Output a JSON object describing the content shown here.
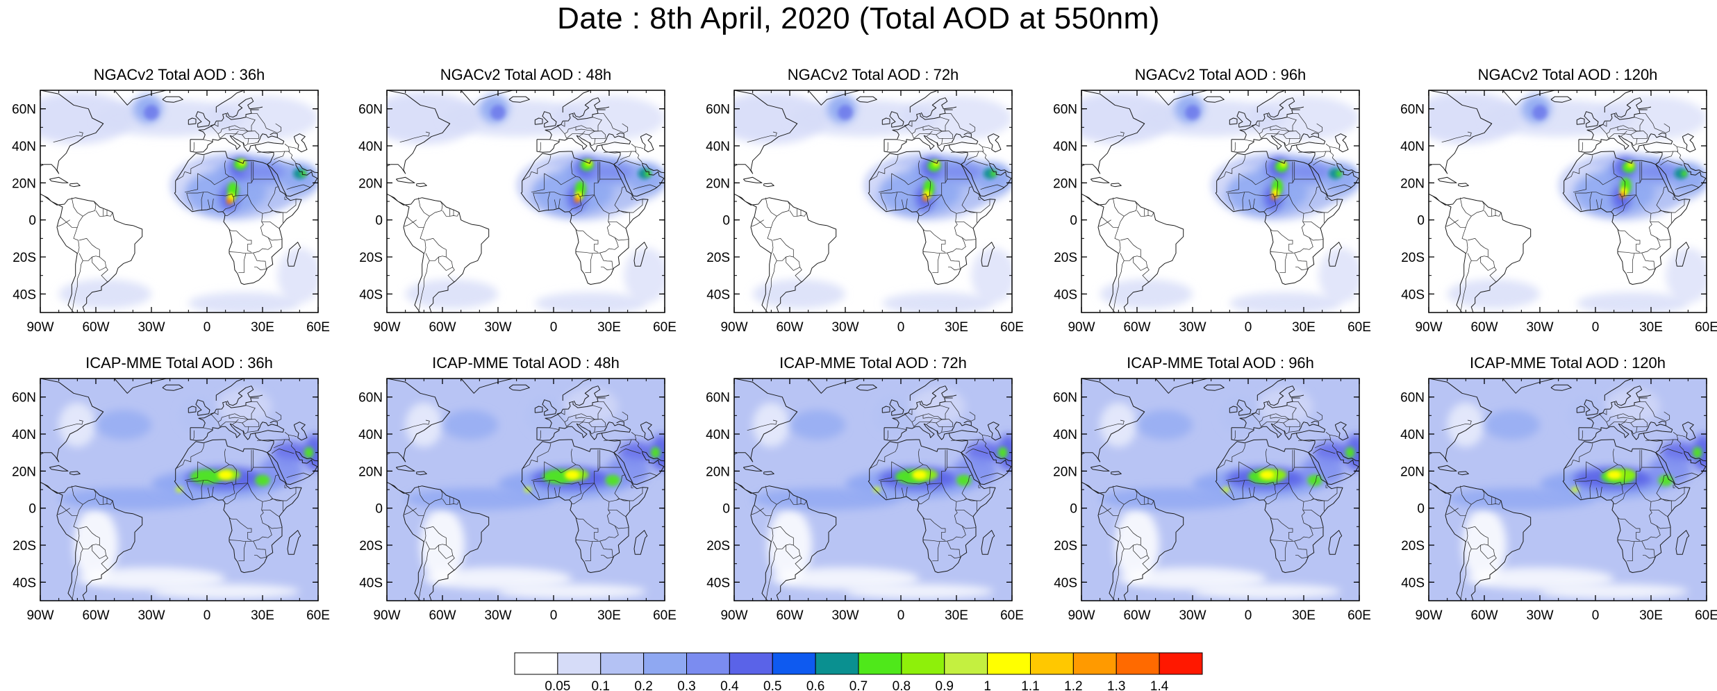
{
  "title": "Date : 8th April, 2020 (Total AOD at 550nm)",
  "panels": [
    {
      "row": "ngac",
      "lead": "36h",
      "title": "NGACv2 Total AOD : 36h"
    },
    {
      "row": "ngac",
      "lead": "48h",
      "title": "NGACv2 Total AOD : 48h"
    },
    {
      "row": "ngac",
      "lead": "72h",
      "title": "NGACv2 Total AOD : 72h"
    },
    {
      "row": "ngac",
      "lead": "96h",
      "title": "NGACv2 Total AOD : 96h"
    },
    {
      "row": "ngac",
      "lead": "120h",
      "title": "NGACv2 Total AOD : 120h"
    },
    {
      "row": "icap",
      "lead": "36h",
      "title": "ICAP-MME Total AOD : 36h"
    },
    {
      "row": "icap",
      "lead": "48h",
      "title": "ICAP-MME Total AOD : 48h"
    },
    {
      "row": "icap",
      "lead": "72h",
      "title": "ICAP-MME Total AOD : 72h"
    },
    {
      "row": "icap",
      "lead": "96h",
      "title": "ICAP-MME Total AOD : 96h"
    },
    {
      "row": "icap",
      "lead": "120h",
      "title": "ICAP-MME Total AOD : 120h"
    }
  ],
  "axes": {
    "x_ticks": [
      {
        "lon": -90,
        "label": "90W"
      },
      {
        "lon": -60,
        "label": "60W"
      },
      {
        "lon": -30,
        "label": "30W"
      },
      {
        "lon": 0,
        "label": "0"
      },
      {
        "lon": 30,
        "label": "30E"
      },
      {
        "lon": 60,
        "label": "60E"
      }
    ],
    "y_ticks": [
      {
        "lat": 60,
        "label": "60N"
      },
      {
        "lat": 40,
        "label": "40N"
      },
      {
        "lat": 20,
        "label": "20N"
      },
      {
        "lat": 0,
        "label": "0"
      },
      {
        "lat": -20,
        "label": "20S"
      },
      {
        "lat": -40,
        "label": "40S"
      }
    ],
    "lon_range": [
      -90,
      60
    ],
    "lat_range": [
      -50,
      70
    ]
  },
  "colorbar": {
    "colors": [
      "#ffffff",
      "#d6dcf8",
      "#b4c2f4",
      "#8fa8f2",
      "#7b8cf0",
      "#5a63e8",
      "#0e5af0",
      "#0a9090",
      "#4fe81a",
      "#8ef00a",
      "#c4f040",
      "#ffff00",
      "#ffc800",
      "#ff9a00",
      "#ff6a00",
      "#ff1800"
    ],
    "labels": [
      "0.05",
      "0.1",
      "0.2",
      "0.3",
      "0.4",
      "0.5",
      "0.6",
      "0.7",
      "0.8",
      "0.9",
      "1",
      "1.1",
      "1.2",
      "1.3",
      "1.4"
    ]
  },
  "map_colors": {
    "ocean_ngac": "#ffffff",
    "ocean_icap": "#b8c4f4",
    "coast": "#1a1a1a"
  }
}
